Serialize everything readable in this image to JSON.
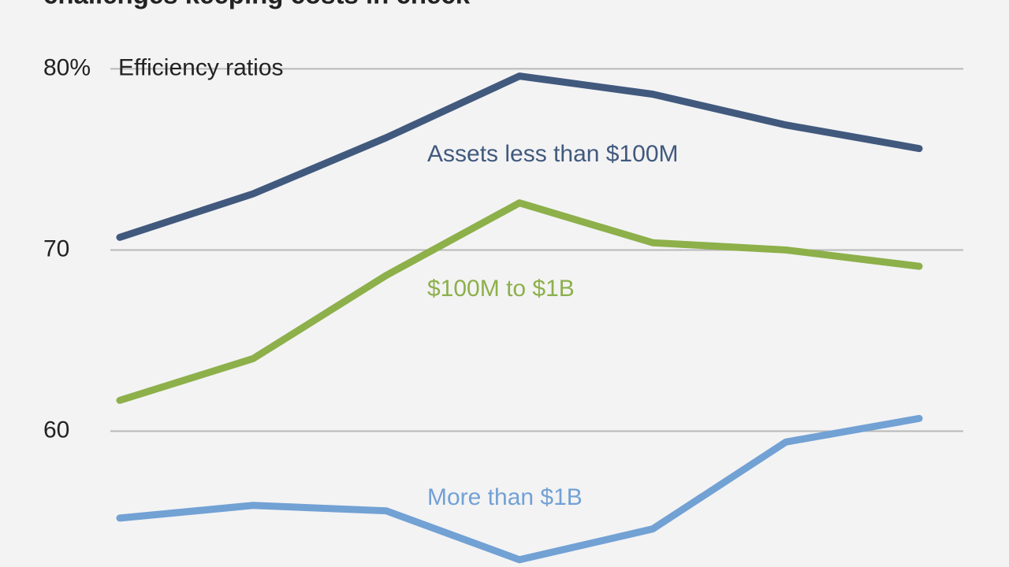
{
  "chart_data": {
    "type": "line",
    "title": "challenges keeping costs in check",
    "y_label": "Efficiency ratios",
    "categories": [
      null,
      null,
      null,
      null,
      null,
      null,
      null
    ],
    "series": [
      {
        "name": "Assets less than $100M",
        "color": "#41597d",
        "values": [
          70.7,
          73.1,
          76.2,
          79.6,
          78.6,
          76.9,
          75.6
        ]
      },
      {
        "name": "$100M to $1B",
        "color": "#8db04a",
        "values": [
          61.7,
          64.0,
          68.6,
          72.6,
          70.4,
          70.0,
          69.1
        ]
      },
      {
        "name": "More than $1B",
        "color": "#72a1d4",
        "values": [
          55.2,
          55.9,
          55.6,
          52.9,
          54.6,
          59.4,
          60.7
        ]
      }
    ],
    "ylim": [
      52.5,
      83.8
    ],
    "yticks": [
      60,
      70,
      {
        "value": 80,
        "label": "80%"
      }
    ],
    "grid": true
  }
}
